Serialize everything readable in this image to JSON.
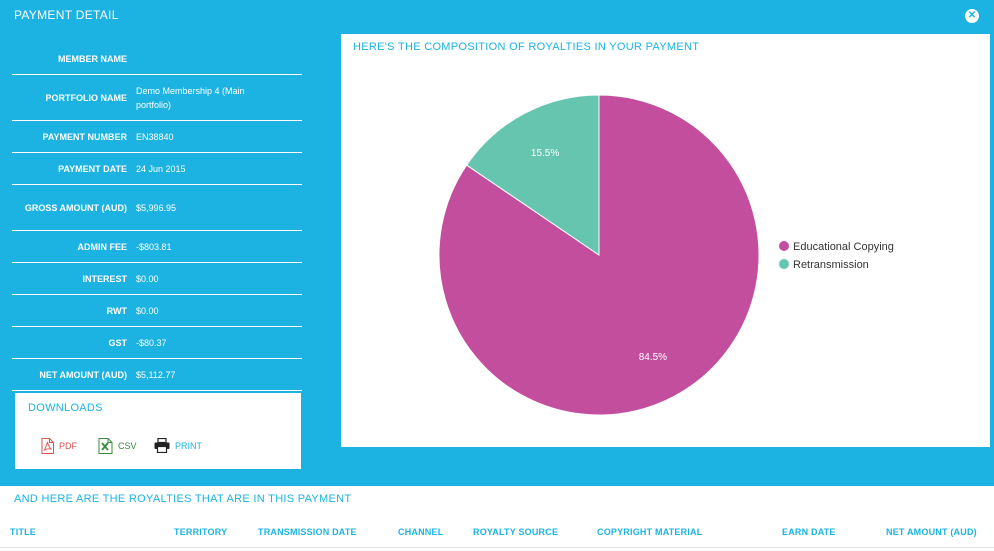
{
  "header": {
    "title": "PAYMENT DETAIL",
    "close_icon": "close-circle-icon"
  },
  "details": [
    {
      "label": "MEMBER NAME",
      "value": ""
    },
    {
      "label": "PORTFOLIO NAME",
      "value": "Demo Membership 4 (Main portfolio)"
    },
    {
      "label": "PAYMENT NUMBER",
      "value": "EN38840"
    },
    {
      "label": "PAYMENT DATE",
      "value": "24 Jun 2015"
    },
    {
      "label": "GROSS AMOUNT (AUD)",
      "value": "$5,996.95"
    },
    {
      "label": "ADMIN FEE",
      "value": "-$803.81"
    },
    {
      "label": "INTEREST",
      "value": "$0.00"
    },
    {
      "label": "RWT",
      "value": "$0.00"
    },
    {
      "label": "GST",
      "value": "-$80.37"
    },
    {
      "label": "NET AMOUNT (AUD)",
      "value": "$5,112.77"
    }
  ],
  "downloads": {
    "title": "DOWNLOADS",
    "items": [
      {
        "label": "PDF",
        "icon": "pdf-icon",
        "color": "#d9534f"
      },
      {
        "label": "CSV",
        "icon": "excel-icon",
        "color": "#3a8b3a"
      },
      {
        "label": "PRINT",
        "icon": "printer-icon",
        "color": "#1cb3e2"
      }
    ]
  },
  "chart_panel": {
    "title": "HERE'S THE COMPOSITION OF ROYALTIES IN YOUR PAYMENT"
  },
  "chart_data": {
    "type": "pie",
    "slices": [
      {
        "name": "Educational Copying",
        "value": 84.5,
        "label": "84.5%",
        "color": "#c44e9e"
      },
      {
        "name": "Retransmission",
        "value": 15.5,
        "label": "15.5%",
        "color": "#66c5ae"
      }
    ],
    "legend_position": "right"
  },
  "royalties": {
    "title": "AND HERE ARE THE ROYALTIES THAT ARE IN THIS PAYMENT",
    "columns": [
      "TITLE",
      "TERRITORY",
      "TRANSMISSION DATE",
      "CHANNEL",
      "ROYALTY SOURCE",
      "COPYRIGHT MATERIAL",
      "EARN DATE",
      "NET AMOUNT (AUD)"
    ]
  },
  "colors": {
    "background": "#1cb3e2",
    "panel": "#ffffff",
    "accent": "#1cb3e2"
  }
}
